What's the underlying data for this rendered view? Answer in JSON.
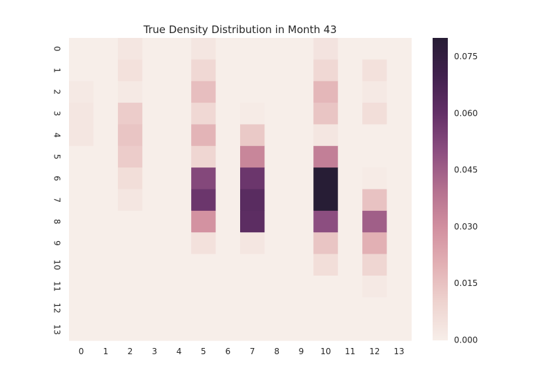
{
  "chart_data": {
    "type": "heatmap",
    "title": "True Density Distribution in Month 43",
    "xlabel": "",
    "ylabel": "",
    "x_categories": [
      "0",
      "1",
      "2",
      "3",
      "4",
      "5",
      "6",
      "7",
      "8",
      "9",
      "10",
      "11",
      "12",
      "13"
    ],
    "y_categories": [
      "0",
      "1",
      "2",
      "3",
      "4",
      "5",
      "6",
      "7",
      "8",
      "9",
      "10",
      "11",
      "12",
      "13"
    ],
    "colorbar": {
      "min": 0.0,
      "max": 0.08,
      "ticks": [
        0.0,
        0.015,
        0.03,
        0.045,
        0.06,
        0.075
      ],
      "tick_labels": [
        "0.000",
        "0.015",
        "0.030",
        "0.045",
        "0.060",
        "0.075"
      ],
      "colormap": "seaborn cubehelix light-to-dark purple",
      "color_stops": [
        "#f7eee9",
        "#eed3cf",
        "#e2b0b4",
        "#d18f9f",
        "#b3708f",
        "#8c4e80",
        "#633067",
        "#41214e",
        "#271d35"
      ]
    },
    "grid": false,
    "values": [
      [
        0.0,
        0.0,
        0.003,
        0.0,
        0.0,
        0.003,
        0.0,
        0.0,
        0.0,
        0.0,
        0.004,
        0.0,
        0.0,
        0.0
      ],
      [
        0.0,
        0.0,
        0.005,
        0.0,
        0.0,
        0.008,
        0.0,
        0.0,
        0.0,
        0.0,
        0.008,
        0.0,
        0.005,
        0.0
      ],
      [
        0.002,
        0.0,
        0.002,
        0.0,
        0.0,
        0.016,
        0.0,
        0.0,
        0.0,
        0.0,
        0.018,
        0.0,
        0.002,
        0.0
      ],
      [
        0.003,
        0.0,
        0.012,
        0.0,
        0.0,
        0.008,
        0.0,
        0.001,
        0.0,
        0.0,
        0.014,
        0.0,
        0.006,
        0.0
      ],
      [
        0.003,
        0.0,
        0.014,
        0.0,
        0.0,
        0.019,
        0.0,
        0.013,
        0.0,
        0.0,
        0.003,
        0.0,
        0.0,
        0.0
      ],
      [
        0.0,
        0.0,
        0.012,
        0.0,
        0.0,
        0.009,
        0.0,
        0.033,
        0.0,
        0.0,
        0.035,
        0.0,
        0.0,
        0.0
      ],
      [
        0.0,
        0.0,
        0.006,
        0.0,
        0.0,
        0.052,
        0.0,
        0.058,
        0.0,
        0.0,
        0.08,
        0.0,
        0.001,
        0.0
      ],
      [
        0.0,
        0.0,
        0.003,
        0.0,
        0.0,
        0.058,
        0.0,
        0.063,
        0.0,
        0.0,
        0.08,
        0.0,
        0.015,
        0.0
      ],
      [
        0.0,
        0.0,
        0.0,
        0.0,
        0.0,
        0.029,
        0.0,
        0.062,
        0.0,
        0.0,
        0.05,
        0.0,
        0.045,
        0.0
      ],
      [
        0.0,
        0.0,
        0.0,
        0.0,
        0.0,
        0.005,
        0.0,
        0.003,
        0.0,
        0.0,
        0.014,
        0.0,
        0.02,
        0.0
      ],
      [
        0.0,
        0.0,
        0.0,
        0.0,
        0.0,
        0.0,
        0.0,
        0.0,
        0.0,
        0.0,
        0.006,
        0.0,
        0.009,
        0.0
      ],
      [
        0.0,
        0.0,
        0.0,
        0.0,
        0.0,
        0.0,
        0.0,
        0.0,
        0.0,
        0.0,
        0.0,
        0.0,
        0.002,
        0.0
      ],
      [
        0.0,
        0.0,
        0.0,
        0.0,
        0.0,
        0.0,
        0.0,
        0.0,
        0.0,
        0.0,
        0.0,
        0.0,
        0.0,
        0.0
      ],
      [
        0.0,
        0.0,
        0.0,
        0.0,
        0.0,
        0.0,
        0.0,
        0.0,
        0.0,
        0.0,
        0.0,
        0.0,
        0.0,
        0.0
      ]
    ]
  }
}
